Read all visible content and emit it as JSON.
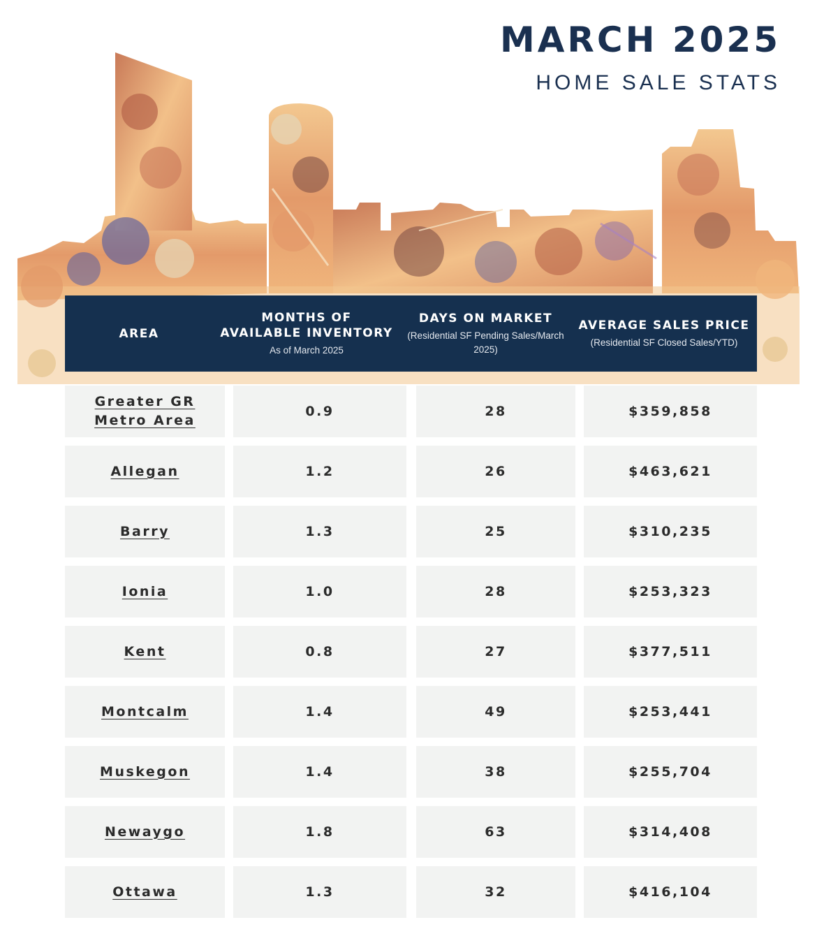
{
  "header": {
    "title": "MARCH 2025",
    "subtitle": "HOME SALE STATS"
  },
  "table": {
    "columns": [
      {
        "title": "AREA",
        "note": ""
      },
      {
        "title": "MONTHS OF AVAILABLE INVENTORY",
        "note": "As of March 2025"
      },
      {
        "title": "DAYS ON MARKET",
        "note": "(Residential SF Pending Sales/March 2025)"
      },
      {
        "title": "AVERAGE SALES PRICE",
        "note": "(Residential SF Closed Sales/YTD)"
      }
    ],
    "rows": [
      {
        "area": "Greater GR Metro Area",
        "inventory": "0.9",
        "days": "28",
        "price": "$359,858"
      },
      {
        "area": "Allegan",
        "inventory": "1.2",
        "days": "26",
        "price": "$463,621"
      },
      {
        "area": "Barry",
        "inventory": "1.3",
        "days": "25",
        "price": "$310,235"
      },
      {
        "area": "Ionia",
        "inventory": "1.0",
        "days": "28",
        "price": "$253,323"
      },
      {
        "area": "Kent",
        "inventory": "0.8",
        "days": "27",
        "price": "$377,511"
      },
      {
        "area": "Montcalm",
        "inventory": "1.4",
        "days": "49",
        "price": "$253,441"
      },
      {
        "area": "Muskegon",
        "inventory": "1.4",
        "days": "38",
        "price": "$255,704"
      },
      {
        "area": "Newaygo",
        "inventory": "1.8",
        "days": "63",
        "price": "$314,408"
      },
      {
        "area": "Ottawa",
        "inventory": "1.3",
        "days": "32",
        "price": "$416,104"
      }
    ]
  },
  "colors": {
    "navy": "#15304f",
    "title": "#1a3050",
    "cell_bg": "#f2f3f2",
    "skyline": [
      "#e8a06a",
      "#f3c68f",
      "#c9785a",
      "#7a4a44",
      "#5a5fa0",
      "#b7644a",
      "#e6d2b0"
    ]
  }
}
